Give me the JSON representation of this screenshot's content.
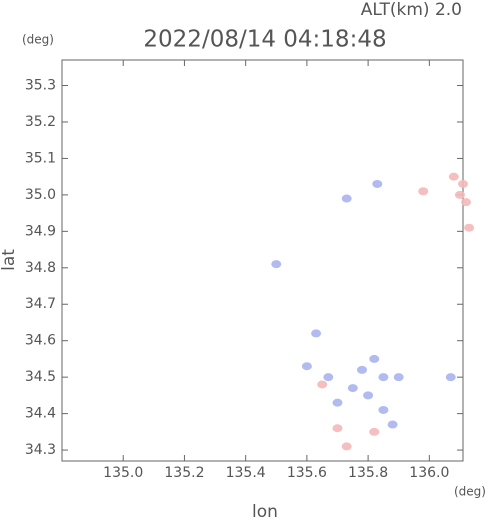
{
  "chart_data": {
    "type": "scatter",
    "title": "2022/08/14 04:18:48",
    "subtitle": "ALT(km) 2.0",
    "y_unit": "(deg)",
    "x_unit": "(deg)",
    "xlabel": "lon",
    "ylabel": "lat",
    "xlim": [
      134.8,
      136.11
    ],
    "xticks": [
      {
        "value": 135,
        "label": "135.0"
      },
      135.2,
      135.4,
      135.6,
      135.8,
      {
        "value": 136,
        "label": "136.0"
      }
    ],
    "ylim": [
      34.27,
      35.37
    ],
    "yticks": [
      35.3,
      35.2,
      35.1,
      {
        "value": 35,
        "label": "35.0"
      },
      34.9,
      34.8,
      34.7,
      34.6,
      34.5,
      34.4,
      34.3
    ],
    "series": [
      {
        "color": "#f5b8b8",
        "x": [
          136.1,
          136.08,
          136.12,
          136.13,
          135.98,
          135.65,
          135.7,
          135.73,
          135.82,
          136.11
        ],
        "values": [
          35.0,
          35.05,
          34.98,
          34.91,
          35.01,
          34.48,
          34.36,
          34.31,
          34.35,
          35.03
        ]
      },
      {
        "color": "#aab4ee",
        "x": [
          135.83,
          135.73,
          135.5,
          135.63,
          135.78,
          135.85,
          135.8,
          135.7,
          135.9,
          136.07,
          135.67,
          135.85,
          135.6,
          135.75,
          135.88,
          135.82
        ],
        "values": [
          35.03,
          34.99,
          34.81,
          34.62,
          34.52,
          34.5,
          34.45,
          34.43,
          34.5,
          34.5,
          34.5,
          34.41,
          34.53,
          34.47,
          34.37,
          34.55
        ]
      }
    ]
  }
}
